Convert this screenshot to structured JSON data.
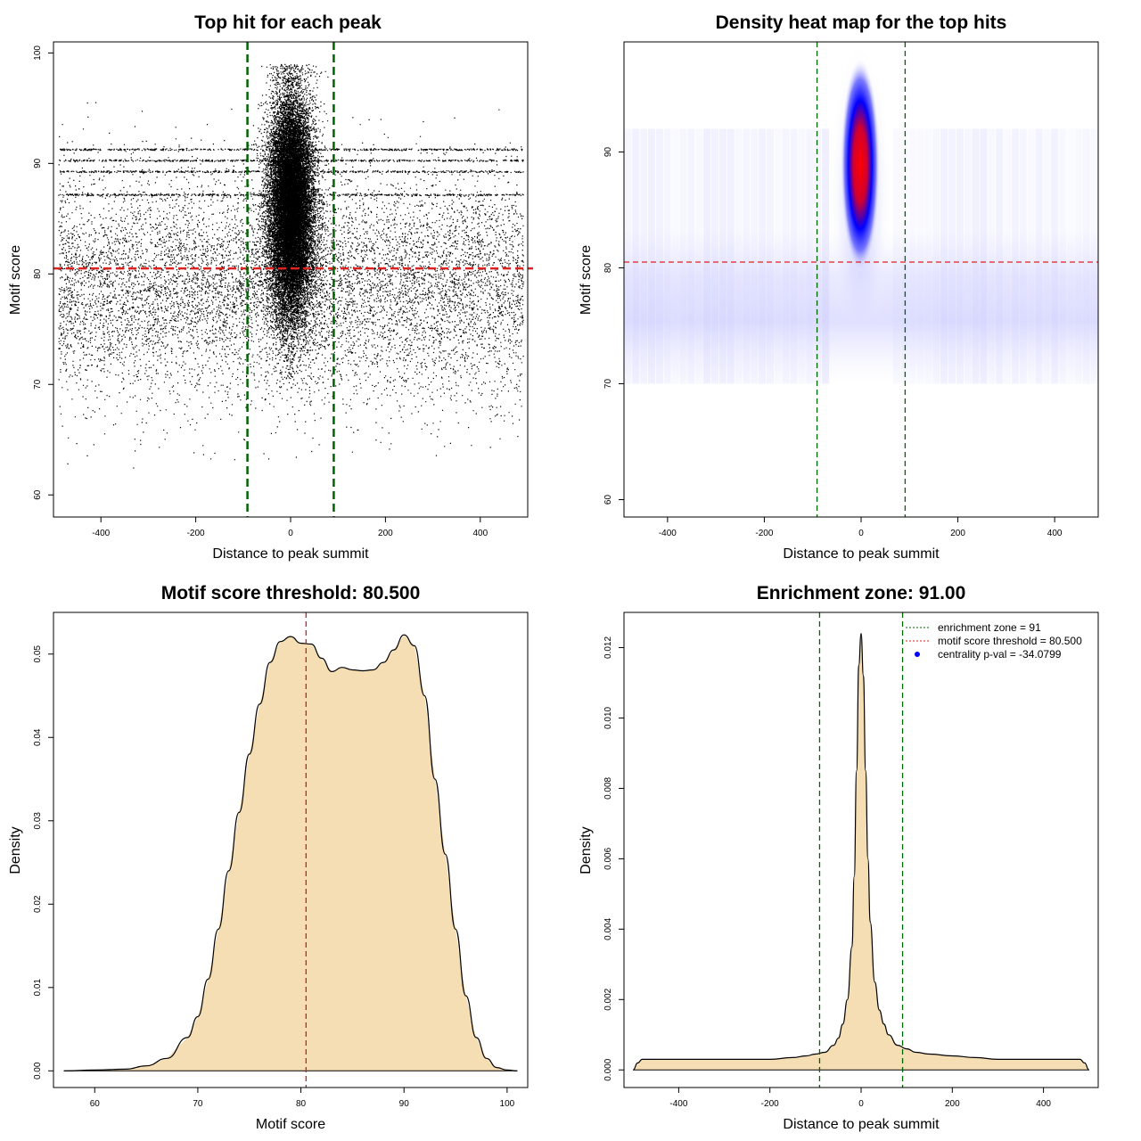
{
  "chart_data": [
    {
      "id": "scatter",
      "type": "scatter",
      "title": "Top hit for each peak",
      "xlabel": "Distance to peak summit",
      "ylabel": "Motif score",
      "xlim": [
        -500,
        500
      ],
      "ylim": [
        58,
        101
      ],
      "xticks": [
        -400,
        -200,
        0,
        200,
        400
      ],
      "yticks": [
        60,
        70,
        80,
        90,
        100
      ],
      "hlines": [
        {
          "y": 80.5,
          "color": "#dd2222"
        }
      ],
      "vlines": [
        {
          "x": -91,
          "color": "#006400"
        },
        {
          "x": 91,
          "color": "#006400"
        }
      ],
      "point_color": "#000000",
      "point_groups": [
        {
          "region": "background",
          "x_range": [
            -490,
            490
          ],
          "score_center": 79,
          "score_spread": 5
        },
        {
          "region": "center",
          "x_range": [
            -60,
            60
          ],
          "score_center": 86,
          "score_spread": 5
        },
        {
          "region": "stripes",
          "scores": [
            90.3,
            91.3,
            89.3,
            87.2
          ]
        }
      ],
      "grid": false
    },
    {
      "id": "heatmap",
      "type": "heatmap",
      "title": "Density heat map for the top hits",
      "xlabel": "Distance to peak summit",
      "ylabel": "Motif score",
      "xlim": [
        -490,
        490
      ],
      "ylim": [
        58.5,
        99.5
      ],
      "xticks": [
        -400,
        -200,
        0,
        200,
        400
      ],
      "yticks": [
        60,
        70,
        80,
        90
      ],
      "hlines": [
        {
          "y": 80.5,
          "color": "#dd2222"
        }
      ],
      "vlines": [
        {
          "x": -91,
          "color": "#006400"
        },
        {
          "x": 91,
          "color": "#006400"
        }
      ],
      "color_scale": [
        "#ffffff",
        "#0000ff",
        "#ff0000"
      ],
      "hotspot": {
        "x": 0,
        "y": 88
      }
    },
    {
      "id": "score_density",
      "type": "area",
      "title": "Motif score threshold: 80.500",
      "xlabel": "Motif score",
      "ylabel": "Density",
      "xlim": [
        56,
        102
      ],
      "ylim": [
        -0.002,
        0.055
      ],
      "xticks": [
        60,
        70,
        80,
        90,
        100
      ],
      "yticks": [
        0.0,
        0.01,
        0.02,
        0.03,
        0.04,
        0.05
      ],
      "ytick_labels": [
        "0.00",
        "0.01",
        "0.02",
        "0.03",
        "0.04",
        "0.05"
      ],
      "vlines": [
        {
          "x": 80.5,
          "color": "#cc2222"
        }
      ],
      "fill": "#f5deb3",
      "x": [
        57,
        60,
        63,
        65,
        67,
        69,
        70,
        71,
        72,
        73,
        74,
        75,
        76,
        77,
        78,
        79,
        80,
        81,
        82,
        83,
        84,
        85,
        86,
        87,
        88,
        89,
        90,
        91,
        92,
        93,
        94,
        95,
        96,
        97,
        98,
        99,
        100,
        101
      ],
      "y": [
        0,
        0.0001,
        0.0002,
        0.0006,
        0.0015,
        0.004,
        0.0065,
        0.011,
        0.017,
        0.024,
        0.031,
        0.038,
        0.044,
        0.049,
        0.0515,
        0.0521,
        0.0513,
        0.0512,
        0.0495,
        0.0479,
        0.0484,
        0.0481,
        0.048,
        0.0481,
        0.049,
        0.0505,
        0.0523,
        0.051,
        0.045,
        0.035,
        0.026,
        0.017,
        0.009,
        0.004,
        0.0015,
        0.0004,
        0.0001,
        0
      ]
    },
    {
      "id": "distance_density",
      "type": "area",
      "title": "Enrichment zone: 91.00",
      "xlabel": "Distance to peak summit",
      "ylabel": "Density",
      "xlim": [
        -520,
        520
      ],
      "ylim": [
        -0.0005,
        0.013
      ],
      "xticks": [
        -400,
        -200,
        0,
        200,
        400
      ],
      "yticks": [
        0,
        0.002,
        0.004,
        0.006,
        0.008,
        0.01,
        0.012
      ],
      "ytick_labels": [
        "0.000",
        "0.002",
        "0.004",
        "0.006",
        "0.008",
        "0.010",
        "0.012"
      ],
      "vlines": [
        {
          "x": -91,
          "color": "#006400"
        },
        {
          "x": 91,
          "color": "#006400"
        }
      ],
      "fill": "#f5deb3",
      "x": [
        -500,
        -490,
        -480,
        -450,
        -400,
        -350,
        -300,
        -250,
        -200,
        -150,
        -120,
        -100,
        -80,
        -60,
        -50,
        -40,
        -30,
        -20,
        -15,
        -10,
        -5,
        0,
        5,
        10,
        15,
        20,
        30,
        40,
        50,
        60,
        80,
        100,
        120,
        150,
        200,
        250,
        300,
        350,
        400,
        450,
        480,
        490,
        500
      ],
      "y": [
        0,
        0.0002,
        0.0003,
        0.0003,
        0.0003,
        0.0003,
        0.0003,
        0.0003,
        0.0003,
        0.00035,
        0.0004,
        0.00045,
        0.0005,
        0.0007,
        0.0009,
        0.0013,
        0.002,
        0.0035,
        0.0055,
        0.0085,
        0.0115,
        0.0124,
        0.0112,
        0.0085,
        0.006,
        0.0042,
        0.0025,
        0.0017,
        0.0013,
        0.001,
        0.0007,
        0.0006,
        0.0005,
        0.00045,
        0.0004,
        0.00035,
        0.0003,
        0.0003,
        0.0003,
        0.0003,
        0.0003,
        0.0002,
        0
      ],
      "legend": {
        "position": "top-right",
        "entries": [
          {
            "label": "enrichment zone = 91",
            "style": "dotted-line",
            "color": "#006400"
          },
          {
            "label": "motif score threshold = 80.500",
            "style": "dotted-line",
            "color": "#dd2222"
          },
          {
            "label": "centrality p-val = -34.0799",
            "style": "point",
            "color": "#0000ff"
          }
        ]
      }
    }
  ]
}
